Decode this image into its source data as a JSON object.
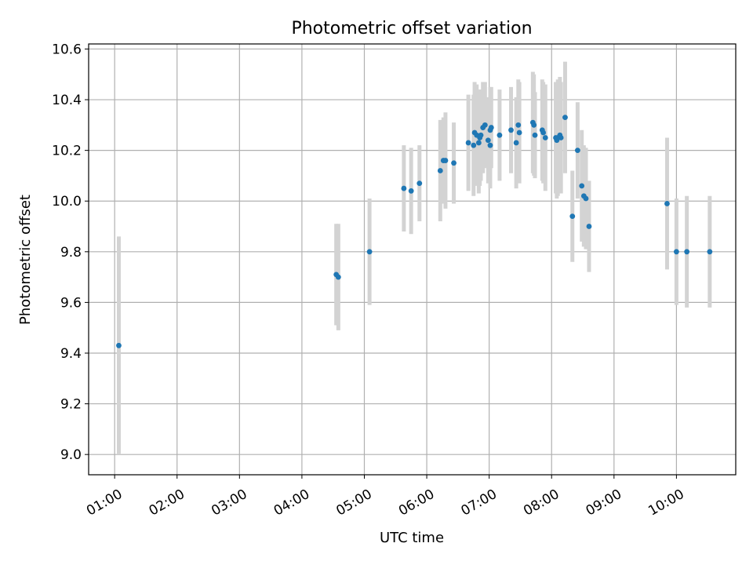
{
  "chart_data": {
    "type": "scatter",
    "title": "Photometric offset variation",
    "xlabel": "UTC time",
    "ylabel": "Photometric offset",
    "xlim": [
      "00:35",
      "10:57"
    ],
    "ylim": [
      8.92,
      10.62
    ],
    "grid": true,
    "x_ticks": [
      "01:00",
      "02:00",
      "03:00",
      "04:00",
      "05:00",
      "06:00",
      "07:00",
      "08:00",
      "09:00",
      "10:00"
    ],
    "y_ticks": [
      9.0,
      9.2,
      9.4,
      9.6,
      9.8,
      10.0,
      10.2,
      10.4,
      10.6
    ],
    "y_tick_labels": [
      "9.0",
      "9.2",
      "9.4",
      "9.6",
      "9.8",
      "10.0",
      "10.2",
      "10.4",
      "10.6"
    ],
    "marker_color": "#1f77b4",
    "errorbar_color": "#d3d3d3",
    "series": [
      {
        "x": [
          "01:04",
          "04:33",
          "04:35",
          "05:05",
          "05:38",
          "05:45",
          "05:53",
          "06:13",
          "06:16",
          "06:18",
          "06:26",
          "06:40",
          "06:45",
          "06:46",
          "06:48",
          "06:50",
          "06:51",
          "06:52",
          "06:54",
          "06:56",
          "06:59",
          "07:01",
          "07:01",
          "07:02",
          "07:10",
          "07:21",
          "07:26",
          "07:28",
          "07:29",
          "07:42",
          "07:43",
          "07:44",
          "07:51",
          "07:52",
          "07:54",
          "08:04",
          "08:05",
          "08:06",
          "08:08",
          "08:09",
          "08:13",
          "08:20",
          "08:25",
          "08:29",
          "08:31",
          "08:33",
          "08:36",
          "09:51",
          "10:00",
          "10:10",
          "10:32"
        ],
        "y": [
          9.43,
          9.71,
          9.7,
          9.8,
          10.05,
          10.04,
          10.07,
          10.12,
          10.16,
          10.16,
          10.15,
          10.23,
          10.22,
          10.27,
          10.26,
          10.23,
          10.25,
          10.26,
          10.29,
          10.3,
          10.24,
          10.28,
          10.22,
          10.29,
          10.26,
          10.28,
          10.23,
          10.3,
          10.27,
          10.31,
          10.3,
          10.26,
          10.28,
          10.27,
          10.25,
          10.25,
          10.24,
          10.25,
          10.26,
          10.25,
          10.33,
          9.94,
          10.2,
          10.06,
          10.02,
          10.01,
          9.9,
          9.99,
          9.8,
          9.8,
          9.8
        ],
        "yerr": [
          0.43,
          0.2,
          0.21,
          0.21,
          0.17,
          0.17,
          0.15,
          0.2,
          0.17,
          0.19,
          0.16,
          0.19,
          0.2,
          0.2,
          0.2,
          0.2,
          0.19,
          0.18,
          0.18,
          0.17,
          0.17,
          0.17,
          0.17,
          0.16,
          0.18,
          0.17,
          0.18,
          0.18,
          0.2,
          0.2,
          0.2,
          0.17,
          0.2,
          0.2,
          0.21,
          0.22,
          0.23,
          0.23,
          0.23,
          0.22,
          0.22,
          0.18,
          0.19,
          0.22,
          0.2,
          0.2,
          0.18,
          0.26,
          0.21,
          0.22,
          0.22
        ]
      }
    ]
  }
}
